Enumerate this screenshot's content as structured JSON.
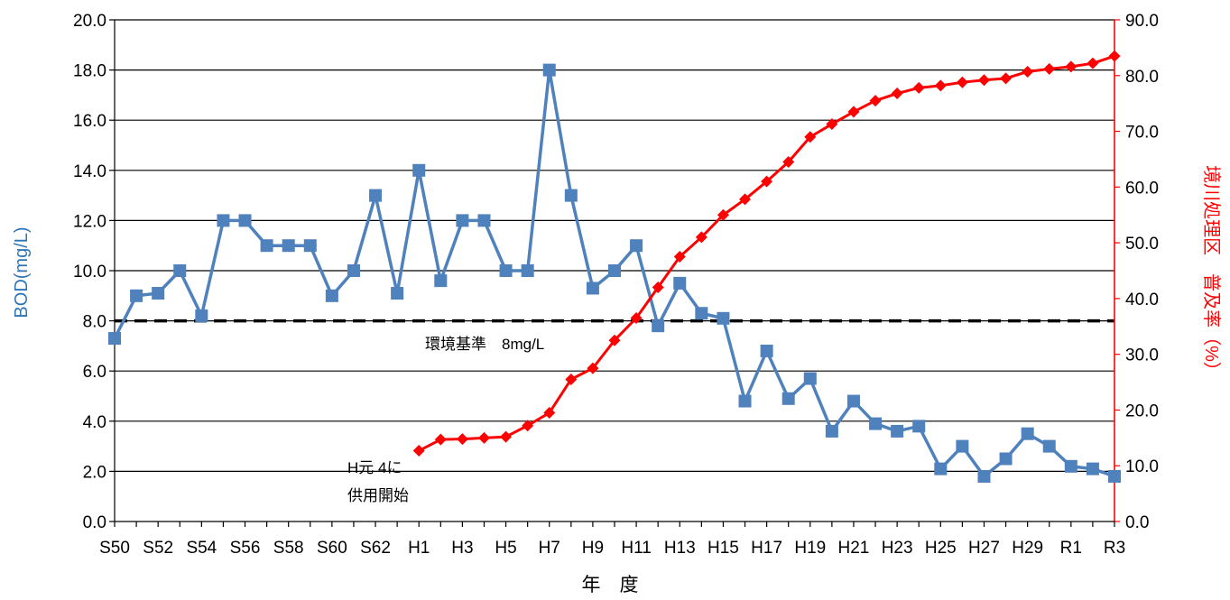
{
  "chart_data": {
    "type": "line",
    "xlabel": "年　度",
    "ylabel_left": "BOD(mg/L)",
    "ylabel_right": "境川処理区　普及率（%）",
    "ylim_left": [
      0,
      20
    ],
    "ylim_right": [
      0,
      90
    ],
    "yticks_left": [
      "0.0",
      "2.0",
      "4.0",
      "6.0",
      "8.0",
      "10.0",
      "12.0",
      "14.0",
      "16.0",
      "18.0",
      "20.0"
    ],
    "yticks_right": [
      "0.0",
      "10.0",
      "20.0",
      "30.0",
      "40.0",
      "50.0",
      "60.0",
      "70.0",
      "80.0",
      "90.0"
    ],
    "x_categories": [
      "S50",
      "S51",
      "S52",
      "S53",
      "S54",
      "S55",
      "S56",
      "S57",
      "S58",
      "S59",
      "S60",
      "S61",
      "S62",
      "S63",
      "H1",
      "H2",
      "H3",
      "H4",
      "H5",
      "H6",
      "H7",
      "H8",
      "H9",
      "H10",
      "H11",
      "H12",
      "H13",
      "H14",
      "H15",
      "H16",
      "H17",
      "H18",
      "H19",
      "H20",
      "H21",
      "H22",
      "H23",
      "H24",
      "H25",
      "H26",
      "H27",
      "H28",
      "H29",
      "H30",
      "R1",
      "R2",
      "R3"
    ],
    "x_tick_labels": [
      "S50",
      "S52",
      "S54",
      "S56",
      "S58",
      "S60",
      "S62",
      "H1",
      "H3",
      "H5",
      "H7",
      "H9",
      "H11",
      "H13",
      "H15",
      "H17",
      "H19",
      "H21",
      "H23",
      "H25",
      "H27",
      "H29",
      "R1",
      "R3"
    ],
    "series": [
      {
        "axis": "left",
        "color": "#4f81bd",
        "marker": "square",
        "values": [
          7.3,
          9.0,
          9.1,
          10.0,
          8.2,
          12.0,
          12.0,
          11.0,
          11.0,
          11.0,
          9.0,
          10.0,
          13.0,
          9.1,
          14.0,
          9.6,
          12.0,
          12.0,
          10.0,
          10.0,
          18.0,
          13.0,
          9.3,
          10.0,
          11.0,
          7.8,
          9.5,
          8.3,
          8.1,
          4.8,
          6.8,
          4.9,
          5.7,
          3.6,
          4.8,
          3.9,
          3.6,
          3.8,
          2.1,
          3.0,
          1.8,
          2.5,
          3.5,
          3.0,
          2.2,
          2.1,
          1.8
        ]
      },
      {
        "axis": "right",
        "color": "#ff0000",
        "marker": "diamond",
        "start_index": 14,
        "values": [
          12.7,
          14.7,
          14.8,
          15.0,
          15.2,
          17.2,
          19.5,
          25.5,
          27.5,
          32.5,
          36.5,
          42.0,
          47.5,
          51.0,
          55.0,
          57.8,
          61.0,
          64.5,
          69.0,
          71.3,
          73.5,
          75.5,
          76.8,
          77.8,
          78.2,
          78.8,
          79.2,
          79.5,
          80.7,
          81.2,
          81.6,
          82.2,
          83.5
        ]
      }
    ],
    "reference_line": {
      "axis": "left",
      "value": 8.0,
      "label": "環境基準　8mg/L",
      "style": "dashed",
      "color": "#000000"
    },
    "annotation": {
      "lines": [
        "H元 4に",
        "供用開始"
      ]
    },
    "grid": true,
    "colors": {
      "left_axis_label": "#2e75b6",
      "right_axis": "#ff0000"
    }
  }
}
